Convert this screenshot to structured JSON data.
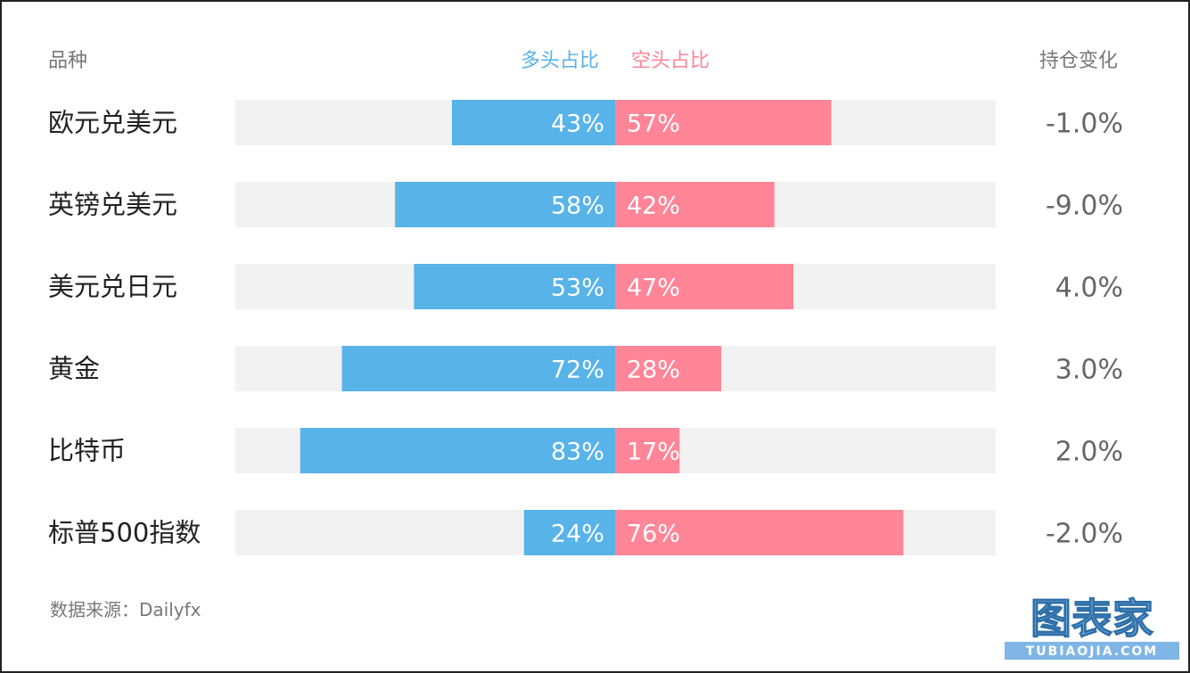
{
  "headers": {
    "variety": "品种",
    "long_ratio": "多头占比",
    "short_ratio": "空头占比",
    "position_change": "持仓变化"
  },
  "colors": {
    "long": "#58b3e8",
    "short": "#ff8597",
    "track": "#f2f2f2"
  },
  "source": "数据来源：Dailyfx",
  "watermark": {
    "main": "图表家",
    "sub": "TUBIAOJIA.COM"
  },
  "chart_data": {
    "type": "bar",
    "categories": [
      "欧元兑美元",
      "英镑兑美元",
      "美元兑日元",
      "黄金",
      "比特币",
      "标普500指数"
    ],
    "series": [
      {
        "name": "多头占比",
        "values": [
          43,
          58,
          53,
          72,
          83,
          24
        ]
      },
      {
        "name": "空头占比",
        "values": [
          57,
          42,
          47,
          28,
          17,
          76
        ]
      }
    ],
    "position_change": [
      "-1.0%",
      "-9.0%",
      "4.0%",
      "3.0%",
      "2.0%",
      "-2.0%"
    ],
    "unit": "%",
    "xlim": [
      -100,
      100
    ]
  }
}
